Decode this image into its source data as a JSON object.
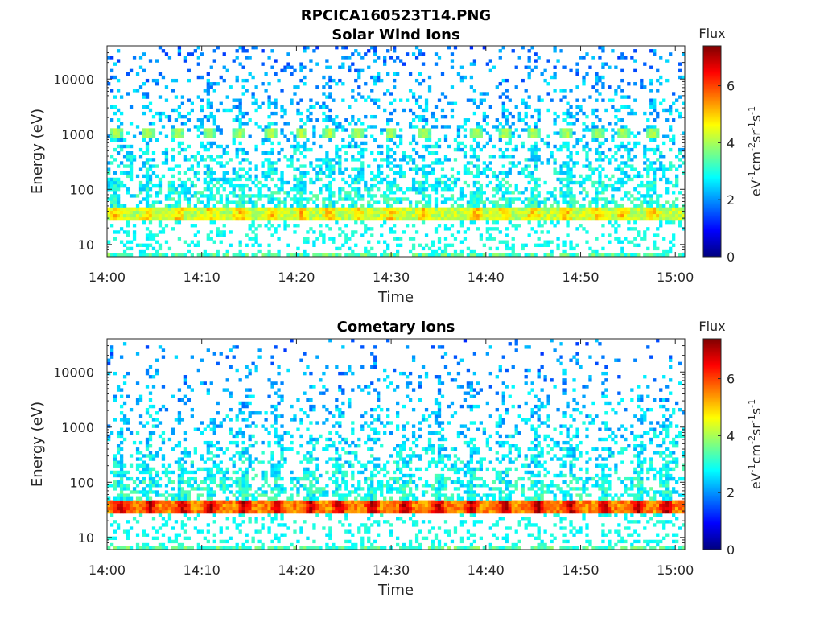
{
  "figure_title": "RPCICA160523T14.PNG",
  "colormap": [
    "#00007f",
    "#0000ff",
    "#007fff",
    "#00ffff",
    "#7fff7f",
    "#ffff00",
    "#ff7f00",
    "#ff0000",
    "#7f0000"
  ],
  "chart_data": [
    {
      "type": "heatmap",
      "title": "Solar Wind Ions",
      "xlabel": "Time",
      "ylabel": "Energy (eV)",
      "x_ticks": [
        "14:00",
        "14:10",
        "14:20",
        "14:30",
        "14:40",
        "14:50",
        "15:00"
      ],
      "xlim": [
        "14:00",
        "15:01"
      ],
      "y_scale": "log",
      "y_ticks": [
        10,
        100,
        1000,
        10000
      ],
      "y_tick_labels": [
        "10",
        "100",
        "1000",
        "10000"
      ],
      "ylim": [
        6,
        40000
      ],
      "colorbar": {
        "title": "Flux",
        "label": "eV-1cm-2sr-1s-1",
        "ticks": [
          0,
          2,
          4,
          6
        ],
        "tick_labels": [
          "0",
          "2",
          "4",
          "6"
        ],
        "range": [
          0,
          7.4
        ]
      },
      "features": {
        "low_energy_band_eV": [
          28,
          50
        ],
        "low_energy_band_flux": 4.2,
        "solar_wind_beam_eV": 1000,
        "solar_wind_beam_flux": 3.0,
        "burst_times_min": [
          1,
          4.3,
          7.5,
          10.8,
          14,
          17.3,
          20.5,
          23.5,
          26.5,
          30,
          33.5,
          39,
          42,
          45,
          48.5,
          51.8,
          54.5,
          57.6
        ]
      }
    },
    {
      "type": "heatmap",
      "title": "Cometary Ions",
      "xlabel": "Time",
      "ylabel": "Energy (eV)",
      "x_ticks": [
        "14:00",
        "14:10",
        "14:20",
        "14:30",
        "14:40",
        "14:50",
        "15:00"
      ],
      "xlim": [
        "14:00",
        "15:01"
      ],
      "y_scale": "log",
      "y_ticks": [
        10,
        100,
        1000,
        10000
      ],
      "y_tick_labels": [
        "10",
        "100",
        "1000",
        "10000"
      ],
      "ylim": [
        6,
        40000
      ],
      "colorbar": {
        "title": "Flux",
        "label": "eV-1cm-2sr-1s-1",
        "ticks": [
          0,
          2,
          4,
          6
        ],
        "tick_labels": [
          "0",
          "2",
          "4",
          "6"
        ],
        "range": [
          0,
          7.4
        ]
      },
      "features": {
        "low_energy_band_eV": [
          28,
          50
        ],
        "low_energy_band_flux": 5.5,
        "burst_times_min": [
          1.5,
          4.5,
          8,
          11,
          14.5,
          18,
          21.5,
          24.5,
          28,
          31.5,
          35,
          38.5,
          42,
          45.5,
          49,
          52.5,
          56,
          59
        ]
      }
    }
  ]
}
